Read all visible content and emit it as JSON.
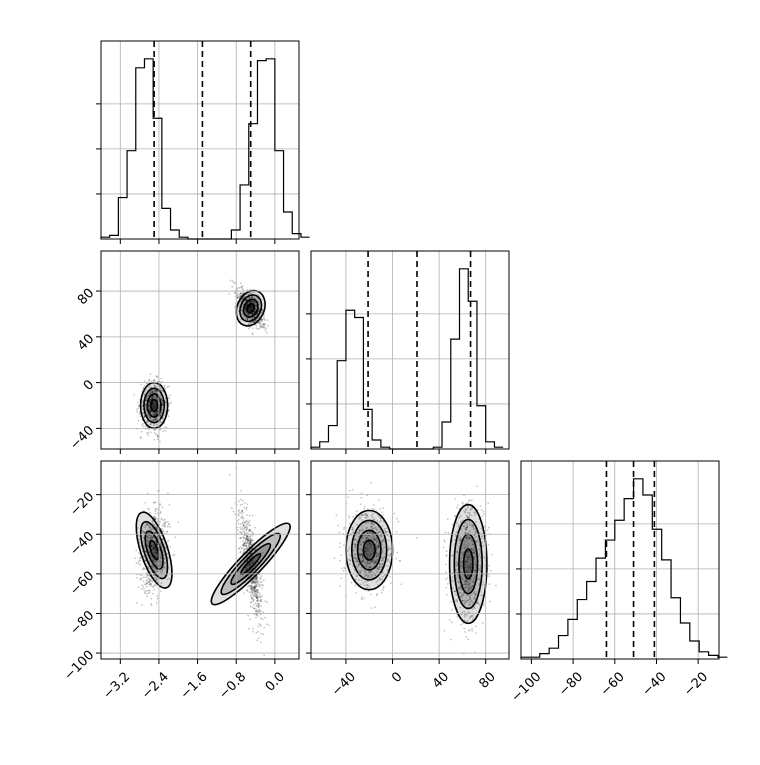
{
  "chart_data": [
    {
      "type": "histogram",
      "panel": "hist-x1",
      "bins": {
        "start": -3.6,
        "width": 0.18
      },
      "counts": [
        0.01,
        0.02,
        0.23,
        0.49,
        0.95,
        1.0,
        0.67,
        0.17,
        0.05,
        0.01,
        0.0,
        0.0,
        0.0,
        0.0,
        0.0,
        0.05,
        0.3,
        0.64,
        0.99,
        1.0,
        0.49,
        0.15,
        0.03,
        0.01
      ],
      "xlim": [
        -3.6,
        0.5
      ],
      "quantiles": [
        -2.5,
        -1.5,
        -0.5
      ]
    },
    {
      "type": "histogram",
      "panel": "hist-x2",
      "bins": {
        "start": -70,
        "width": 7.5
      },
      "counts": [
        0.01,
        0.04,
        0.13,
        0.49,
        0.77,
        0.73,
        0.22,
        0.05,
        0.01,
        0.0,
        0.0,
        0.0,
        0.0,
        0.0,
        0.01,
        0.15,
        0.61,
        1.0,
        0.82,
        0.24,
        0.04,
        0.01
      ],
      "xlim": [
        -70,
        100
      ],
      "quantiles": [
        -21,
        21,
        67
      ]
    },
    {
      "type": "histogram",
      "panel": "hist-x3",
      "bins": {
        "start": -105,
        "width": 4.5
      },
      "counts": [
        0.01,
        0.01,
        0.03,
        0.06,
        0.13,
        0.22,
        0.33,
        0.43,
        0.56,
        0.66,
        0.77,
        0.89,
        1.0,
        0.91,
        0.72,
        0.55,
        0.34,
        0.2,
        0.1,
        0.04,
        0.02,
        0.01
      ],
      "xlim": [
        -105,
        -10
      ],
      "quantiles": [
        -64,
        -51,
        -41
      ]
    },
    {
      "type": "scatter",
      "panel": "x1-vs-x2",
      "modes": [
        {
          "cx": -2.5,
          "cy": -20,
          "sx": 0.14,
          "sy": 10,
          "rho": 0.0
        },
        {
          "cx": -0.5,
          "cy": 65,
          "sx": 0.14,
          "sy": 8,
          "rho": -0.6
        }
      ],
      "xlim": [
        -3.6,
        0.5
      ],
      "ylim": [
        -58,
        115
      ]
    },
    {
      "type": "scatter",
      "panel": "x1-vs-x3",
      "modes": [
        {
          "cx": -2.5,
          "cy": -48,
          "sx": 0.14,
          "sy": 10,
          "rho": 0.2
        },
        {
          "cx": -0.5,
          "cy": -55,
          "sx": 0.12,
          "sy": 14,
          "rho": -0.7
        }
      ],
      "xlim": [
        -3.6,
        0.5
      ],
      "ylim": [
        -103,
        -3
      ]
    },
    {
      "type": "scatter",
      "panel": "x2-vs-x3",
      "modes": [
        {
          "cx": -20,
          "cy": -48,
          "sx": 10,
          "sy": 10,
          "rho": 0.0
        },
        {
          "cx": 65,
          "cy": -55,
          "sx": 8,
          "sy": 15,
          "rho": 0.0
        }
      ],
      "xlim": [
        -70,
        100
      ],
      "ylim": [
        -103,
        -3
      ]
    }
  ],
  "axes": {
    "x1_ticks": [
      -3.2,
      -2.4,
      -1.6,
      -0.8,
      0.0
    ],
    "x1_tick_labels": [
      "−3.2",
      "−2.4",
      "−1.6",
      "−0.8",
      "0.0"
    ],
    "x2_ticks": [
      -40,
      0,
      40,
      80
    ],
    "x2_tick_labels": [
      "−40",
      "0",
      "40",
      "80"
    ],
    "x3_ticks": [
      -100,
      -80,
      -60,
      -40,
      -20
    ],
    "x3_tick_labels": [
      "−100",
      "−80",
      "−60",
      "−40",
      "−20"
    ]
  },
  "style": {
    "grid": true,
    "line_color": "#000000",
    "grid_color": "#b0b0b0",
    "point_color": "#000000"
  }
}
